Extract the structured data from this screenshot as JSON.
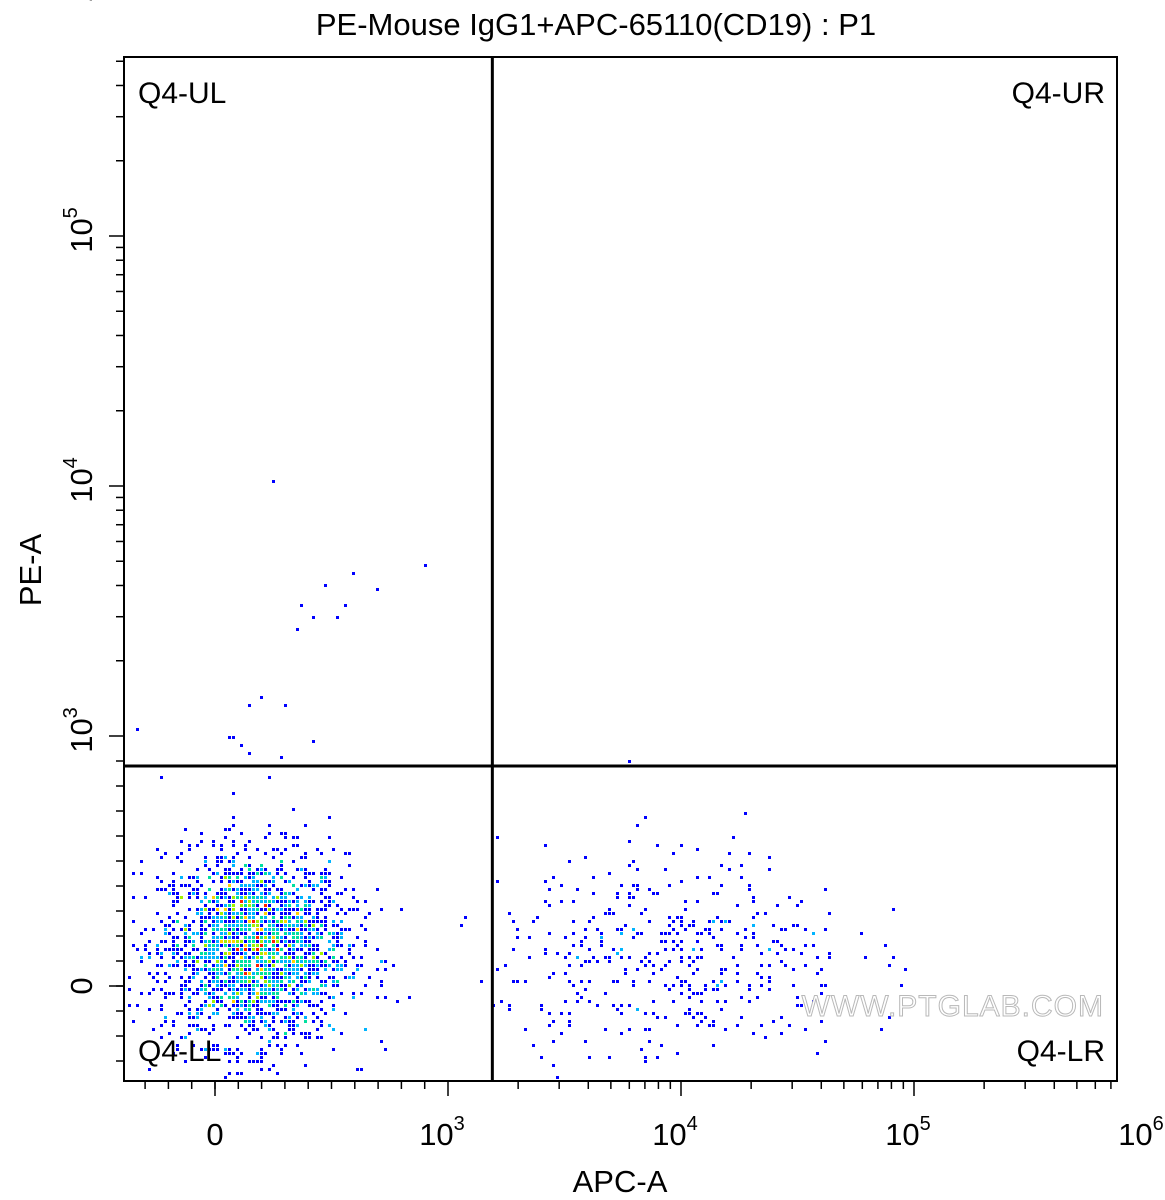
{
  "chart_data": {
    "type": "scatter",
    "title": "PE-Mouse IgG1+APC-65110(CD19) : P1",
    "xlabel": "APC-A",
    "ylabel": "PE-A",
    "x_scale": "biexponential",
    "y_scale": "biexponential",
    "xlim": [
      -400,
      1000000
    ],
    "ylim": [
      -400,
      1000000
    ],
    "x_ticks": [
      {
        "value": 0,
        "base": "0",
        "exp": ""
      },
      {
        "value": 1000,
        "base": "10",
        "exp": "3"
      },
      {
        "value": 10000,
        "base": "10",
        "exp": "4"
      },
      {
        "value": 100000,
        "base": "10",
        "exp": "5"
      },
      {
        "value": 1000000,
        "base": "10",
        "exp": "6"
      }
    ],
    "y_ticks": [
      {
        "value": 0,
        "base": "0",
        "exp": ""
      },
      {
        "value": 1000,
        "base": "10",
        "exp": "3"
      },
      {
        "value": 10000,
        "base": "10",
        "exp": "4"
      },
      {
        "value": 100000,
        "base": "10",
        "exp": "5"
      },
      {
        "value": 1000000,
        "base": "10",
        "exp": "6"
      }
    ],
    "gates": {
      "x": 1550,
      "y": 880
    },
    "quadrants": {
      "ul": "Q4-UL",
      "ur": "Q4-UR",
      "ll": "Q4-LL",
      "lr": "Q4-LR"
    },
    "populations": [
      {
        "name": "",
        "center_x": 170,
        "center_y": 150,
        "spread_x": 200,
        "spread_y": 190,
        "count": 2400
      },
      {
        "name": "",
        "center_x": 9500,
        "center_y": 120,
        "spread_x": 0.38,
        "spread_y": 210,
        "count": 430
      }
    ],
    "outliers": [
      [
        260,
        10500
      ],
      [
        480,
        4000
      ],
      [
        600,
        4500
      ],
      [
        900,
        4700
      ],
      [
        700,
        3900
      ],
      [
        380,
        3300
      ],
      [
        430,
        3000
      ],
      [
        520,
        3000
      ],
      [
        560,
        3300
      ],
      [
        350,
        2700
      ],
      [
        150,
        1300
      ],
      [
        200,
        1400
      ],
      [
        310,
        1300
      ],
      [
        -330,
        1050
      ],
      [
        80,
        990
      ],
      [
        60,
        1000
      ],
      [
        120,
        960
      ],
      [
        150,
        930
      ],
      [
        430,
        970
      ],
      [
        280,
        920
      ],
      [
        6000,
        900
      ]
    ],
    "colormap": [
      "#0000ff",
      "#00b4ff",
      "#00e0a0",
      "#a0f000",
      "#ffd200",
      "#ff2000"
    ]
  },
  "watermark": "WWW.PTGLAB.COM"
}
